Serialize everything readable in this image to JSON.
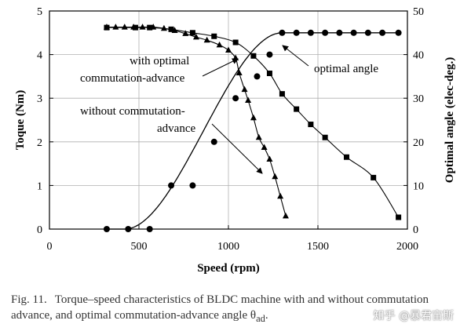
{
  "chart_data": {
    "type": "scatter",
    "xlabel": "Speed (rpm)",
    "ylabel": "Toque (Nm)",
    "y2label": "Optimal angle (elec-deg.)",
    "xlim": [
      0,
      2000
    ],
    "ylim": [
      0,
      5
    ],
    "y2lim": [
      0,
      50
    ],
    "x_ticks": [
      "0",
      "500",
      "1000",
      "1500",
      "2000"
    ],
    "y_ticks": [
      "0",
      "1",
      "2",
      "3",
      "4",
      "5"
    ],
    "y2_ticks": [
      "0",
      "10",
      "20",
      "30",
      "40",
      "50"
    ],
    "grid": true,
    "series": [
      {
        "marker": "square",
        "axis": "left",
        "x": [
          320,
          480,
          560,
          680,
          800,
          920,
          1040,
          1140,
          1230,
          1300,
          1380,
          1460,
          1540,
          1660,
          1810,
          1950
        ],
        "y": [
          4.62,
          4.62,
          4.62,
          4.58,
          4.5,
          4.42,
          4.28,
          3.97,
          3.57,
          3.1,
          2.75,
          2.4,
          2.1,
          1.65,
          1.18,
          0.27
        ]
      },
      {
        "marker": "triangle",
        "axis": "left",
        "x": [
          320,
          370,
          420,
          470,
          520,
          580,
          640,
          700,
          760,
          820,
          880,
          950,
          1000,
          1040,
          1060,
          1090,
          1110,
          1140,
          1170,
          1200,
          1230,
          1260,
          1290,
          1320
        ],
        "y": [
          4.63,
          4.63,
          4.63,
          4.63,
          4.63,
          4.63,
          4.6,
          4.55,
          4.48,
          4.4,
          4.33,
          4.22,
          4.1,
          3.92,
          3.58,
          3.2,
          2.95,
          2.55,
          2.1,
          1.87,
          1.6,
          1.2,
          0.75,
          0.3
        ]
      },
      {
        "marker": "circle",
        "axis": "right",
        "x": [
          320,
          440,
          560,
          680,
          800,
          920,
          1040,
          1160,
          1230,
          1300,
          1380,
          1460,
          1540,
          1620,
          1700,
          1780,
          1860,
          1950
        ],
        "y": [
          0,
          0,
          0,
          10,
          10,
          20,
          30,
          35,
          40,
          45,
          45,
          45,
          45,
          45,
          45,
          45,
          45,
          45
        ]
      }
    ],
    "annotations": [
      {
        "lines": [
          "with optimal",
          "commutation-advance"
        ]
      },
      {
        "lines": [
          "without commutation-",
          "advance"
        ]
      },
      {
        "lines": [
          "optimal angle"
        ]
      }
    ]
  },
  "caption": {
    "figure_label": "Fig. 11.",
    "text": "Torque–speed characteristics of BLDC machine with and without commutation advance, and optimal commutation-advance angle θ",
    "subscript": "ad",
    "suffix": "."
  },
  "watermark": "知乎 @暴君宙斯"
}
